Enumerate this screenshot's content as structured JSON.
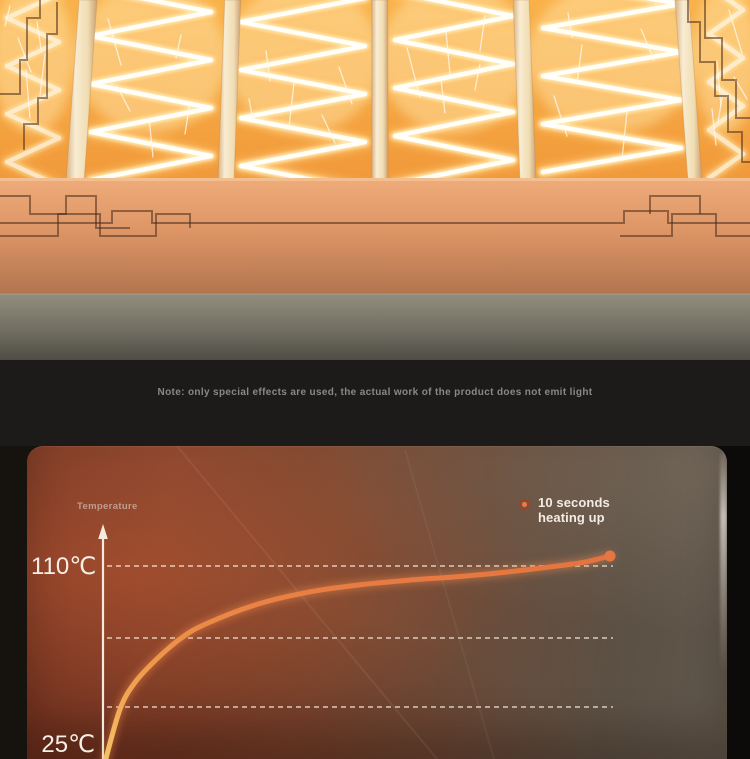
{
  "note": {
    "text": "Note: only special effects are used, the actual work of the product does not emit light"
  },
  "chart": {
    "axis_title": "Temperature",
    "tick_top": "110℃",
    "tick_bottom": "25℃",
    "legend_line1": "10 seconds",
    "legend_line2": "heating up"
  },
  "chart_data": {
    "type": "line",
    "title": "",
    "ylabel": "Temperature",
    "y_unit": "℃",
    "x_unit": "seconds",
    "ylim": [
      25,
      110
    ],
    "xlim": [
      0,
      10
    ],
    "y_tick_labels": [
      "110℃",
      "25℃"
    ],
    "legend": [
      "10 seconds heating up"
    ],
    "legend_position": "top-right",
    "grid": "dashed-horizontal",
    "gridline_y_values": [
      110,
      75,
      46
    ],
    "series": [
      {
        "name": "10 seconds heating up",
        "points": [
          [
            0,
            25
          ],
          [
            0.3,
            47
          ],
          [
            0.6,
            58
          ],
          [
            1,
            67
          ],
          [
            1.5,
            76
          ],
          [
            2,
            82
          ],
          [
            3,
            90
          ],
          [
            4,
            95
          ],
          [
            5,
            98
          ],
          [
            6,
            100
          ],
          [
            7,
            101.5
          ],
          [
            8,
            103.5
          ],
          [
            9,
            106
          ],
          [
            9.5,
            107.5
          ],
          [
            10,
            110
          ]
        ]
      }
    ]
  },
  "colors": {
    "accent_orange": "#e8713d",
    "curve_yellow": "#f6c367",
    "curve_orange": "#e5713f",
    "panel_brown": "#8a4830",
    "coil_glow": "#ffc46a",
    "note_gray": "#8a8886"
  }
}
